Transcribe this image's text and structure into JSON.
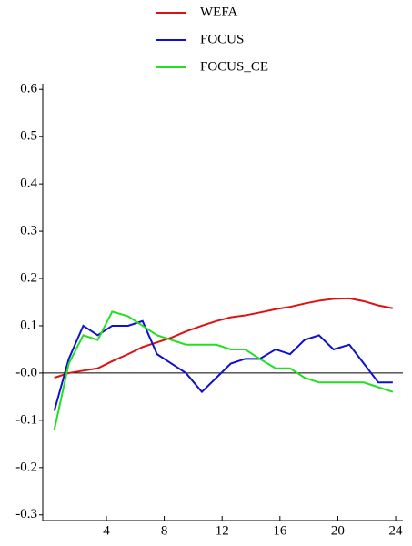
{
  "chart_data": {
    "type": "line",
    "x": [
      0.4,
      1.4,
      2.4,
      3.4,
      4.4,
      5.5,
      6.5,
      7.5,
      8.5,
      9.5,
      10.6,
      11.6,
      12.6,
      13.6,
      14.6,
      15.7,
      16.7,
      17.7,
      18.7,
      19.7,
      20.8,
      21.8,
      22.8,
      23.8
    ],
    "series": [
      {
        "name": "WEFA",
        "color": "#e01010",
        "values": [
          -0.01,
          0.0,
          0.005,
          0.01,
          0.025,
          0.04,
          0.055,
          0.065,
          0.075,
          0.088,
          0.1,
          0.11,
          0.118,
          0.122,
          0.128,
          0.135,
          0.14,
          0.147,
          0.153,
          0.157,
          0.158,
          0.152,
          0.143,
          0.137
        ]
      },
      {
        "name": "FOCUS",
        "color": "#1010d0",
        "values": [
          -0.08,
          0.03,
          0.1,
          0.08,
          0.1,
          0.1,
          0.11,
          0.04,
          0.02,
          0.0,
          -0.04,
          -0.01,
          0.02,
          0.03,
          0.03,
          0.05,
          0.04,
          0.07,
          0.08,
          0.05,
          0.06,
          0.02,
          -0.02,
          -0.02
        ]
      },
      {
        "name": "FOCUS_CE",
        "color": "#20e020",
        "values": [
          -0.12,
          0.02,
          0.08,
          0.07,
          0.13,
          0.12,
          0.1,
          0.08,
          0.07,
          0.06,
          0.06,
          0.06,
          0.05,
          0.05,
          0.03,
          0.01,
          0.01,
          -0.01,
          -0.02,
          -0.02,
          -0.02,
          -0.02,
          -0.03,
          -0.04
        ]
      }
    ],
    "xlim": [
      -0.4,
      24.5
    ],
    "xticks": [
      4,
      8,
      12,
      16,
      20,
      24
    ],
    "ylim": [
      -0.312,
      0.612
    ],
    "yticks": [
      0.6,
      0.5,
      0.4,
      0.3,
      0.2,
      0.1,
      {
        "value": 0,
        "label": "-0.0"
      },
      -0.1,
      -0.2,
      -0.3
    ]
  }
}
